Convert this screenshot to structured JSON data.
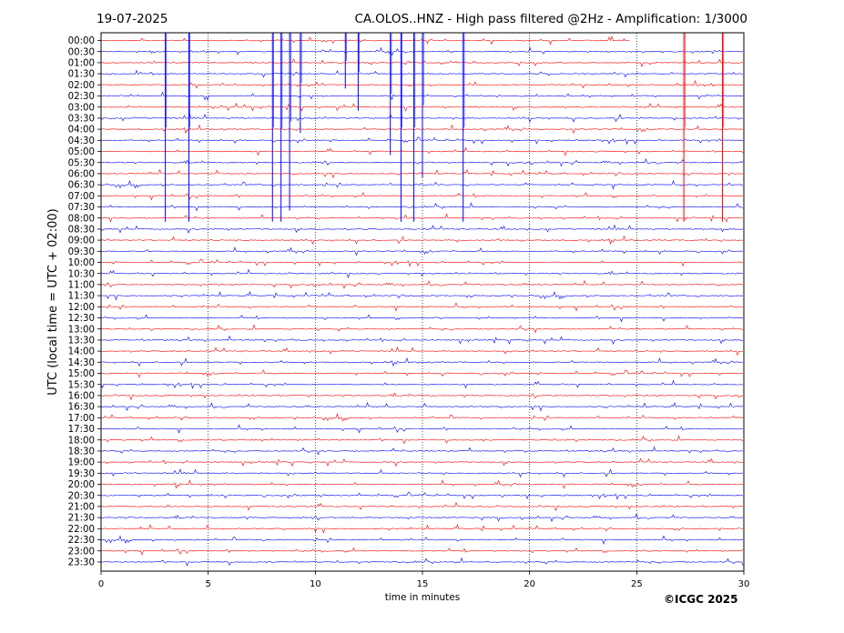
{
  "header": {
    "date": "19-07-2025",
    "title": "CA.OLOS..HNZ - High pass filtered @2Hz - Amplification: 1/3000"
  },
  "footer": {
    "copyright": "©ICGC 2025"
  },
  "chart_data": {
    "type": "helicorder",
    "xlabel": "time in minutes",
    "ylabel": "UTC (local time = UTC + 02:00)",
    "xlim": [
      0,
      30
    ],
    "xticks": [
      "0",
      "5",
      "10",
      "15",
      "20",
      "25",
      "30"
    ],
    "yticks": [
      "00:00",
      "00:30",
      "01:00",
      "01:30",
      "02:00",
      "02:30",
      "03:00",
      "03:30",
      "04:00",
      "04:30",
      "05:00",
      "05:30",
      "06:00",
      "06:30",
      "07:00",
      "07:30",
      "08:00",
      "08:30",
      "09:00",
      "09:30",
      "10:00",
      "10:30",
      "11:00",
      "11:30",
      "12:00",
      "12:30",
      "13:00",
      "13:30",
      "14:00",
      "14:30",
      "15:00",
      "15:30",
      "16:00",
      "16:30",
      "17:00",
      "17:30",
      "18:00",
      "18:30",
      "19:00",
      "19:30",
      "20:00",
      "20:30",
      "21:00",
      "21:30",
      "22:00",
      "22:30",
      "23:00",
      "23:30"
    ],
    "trace_colors": [
      "#ff0000",
      "#0000ff"
    ],
    "grid": "vertical dotted lines at each x tick",
    "gap": {
      "row": "00:00",
      "start_minute": 24.7,
      "end_minute": 30
    },
    "large_events": [
      {
        "minute": 3.0,
        "rows": [
          "00:00",
          "08:00"
        ],
        "color": "blue"
      },
      {
        "minute": 4.1,
        "rows": [
          "00:00",
          "08:00"
        ],
        "color": "blue"
      },
      {
        "minute": 8.0,
        "rows": [
          "00:00",
          "08:00"
        ],
        "color": "blue"
      },
      {
        "minute": 8.4,
        "rows": [
          "00:00",
          "08:00"
        ],
        "color": "blue"
      },
      {
        "minute": 8.8,
        "rows": [
          "00:00",
          "07:30"
        ],
        "color": "blue"
      },
      {
        "minute": 9.3,
        "rows": [
          "00:00",
          "04:00"
        ],
        "color": "blue"
      },
      {
        "minute": 11.4,
        "rows": [
          "00:00",
          "02:00"
        ],
        "color": "blue"
      },
      {
        "minute": 12.0,
        "rows": [
          "00:00",
          "03:00"
        ],
        "color": "blue"
      },
      {
        "minute": 13.5,
        "rows": [
          "00:00",
          "05:00"
        ],
        "color": "blue"
      },
      {
        "minute": 14.0,
        "rows": [
          "00:00",
          "08:00"
        ],
        "color": "blue"
      },
      {
        "minute": 14.6,
        "rows": [
          "00:00",
          "08:00"
        ],
        "color": "blue"
      },
      {
        "minute": 15.0,
        "rows": [
          "00:00",
          "06:00"
        ],
        "color": "blue"
      },
      {
        "minute": 16.9,
        "rows": [
          "00:00",
          "08:00"
        ],
        "color": "blue"
      },
      {
        "minute": 27.2,
        "rows": [
          "00:00",
          "08:00"
        ],
        "color": "red"
      },
      {
        "minute": 29.0,
        "rows": [
          "00:00",
          "08:00"
        ],
        "color": "red"
      }
    ]
  }
}
